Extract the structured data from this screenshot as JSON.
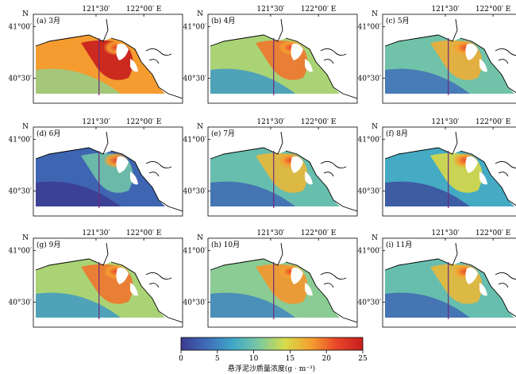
{
  "axis": {
    "lon_labels": [
      "121°30′",
      "122°00′ E"
    ],
    "lat_labels": [
      "41°00′",
      "40°30′"
    ],
    "north": "N"
  },
  "panels": [
    {
      "label": "(a) 3月",
      "level": 0.72
    },
    {
      "label": "(b) 4月",
      "level": 0.5
    },
    {
      "label": "(c) 5月",
      "level": 0.4
    },
    {
      "label": "(d) 6月",
      "level": 0.12
    },
    {
      "label": "(e) 7月",
      "level": 0.38
    },
    {
      "label": "(f) 8月",
      "level": 0.3
    },
    {
      "label": "(g) 9月",
      "level": 0.5
    },
    {
      "label": "(h) 10月",
      "level": 0.45
    },
    {
      "label": "(i) 11月",
      "level": 0.38
    }
  ],
  "colorbar": {
    "ticks": [
      "0",
      "5",
      "10",
      "15",
      "20",
      "25"
    ],
    "title": "悬浮泥沙质量浓度(g · m⁻³)",
    "colors": [
      "#3b3b8f",
      "#3f6db8",
      "#3fa8c8",
      "#7cc9a0",
      "#d6dc4a",
      "#f5a030",
      "#e8452a",
      "#c81e1e"
    ]
  }
}
